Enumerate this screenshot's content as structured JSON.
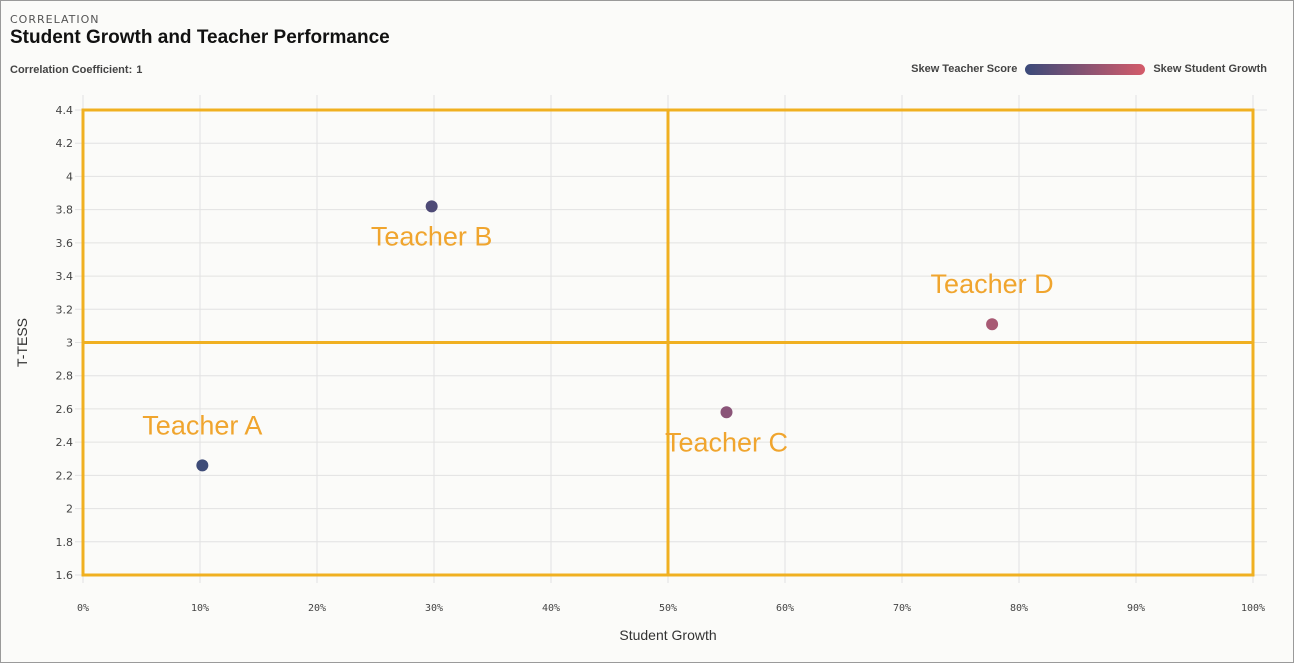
{
  "header": {
    "eyebrow": "CORRELATION",
    "title": "Student Growth and Teacher Performance",
    "coefficient_label": "Correlation Coefficient:",
    "coefficient_value": "1"
  },
  "legend": {
    "left_label": "Skew Teacher Score",
    "right_label": "Skew Student Growth",
    "gradient_start": "#3a4a7a",
    "gradient_end": "#d45b6a"
  },
  "colors": {
    "quadrant_line": "#f0b021",
    "annotation": "#f0a52e",
    "grid": "#e2e2e2"
  },
  "chart_data": {
    "type": "scatter",
    "xlabel": "Student Growth",
    "ylabel": "T-TESS",
    "xlim": [
      0,
      100
    ],
    "ylim": [
      1.6,
      4.4
    ],
    "x_ticks": [
      "0%",
      "10%",
      "20%",
      "30%",
      "40%",
      "50%",
      "60%",
      "70%",
      "80%",
      "90%",
      "100%"
    ],
    "y_ticks": [
      "1.6",
      "1.8",
      "2",
      "2.2",
      "2.4",
      "2.6",
      "2.8",
      "3",
      "3.2",
      "3.4",
      "3.6",
      "3.8",
      "4",
      "4.2",
      "4.4"
    ],
    "grid": true,
    "quadrant_split": {
      "x": 50,
      "y": 3
    },
    "points": [
      {
        "label": "Teacher A",
        "x": 10.2,
        "y": 2.26,
        "color": "#3e4c78",
        "label_pos": "above"
      },
      {
        "label": "Teacher B",
        "x": 29.8,
        "y": 3.82,
        "color": "#4e4a76",
        "label_pos": "below"
      },
      {
        "label": "Teacher C",
        "x": 55.0,
        "y": 2.58,
        "color": "#8a5478",
        "label_pos": "below"
      },
      {
        "label": "Teacher D",
        "x": 77.7,
        "y": 3.11,
        "color": "#a85a74",
        "label_pos": "above"
      }
    ]
  }
}
